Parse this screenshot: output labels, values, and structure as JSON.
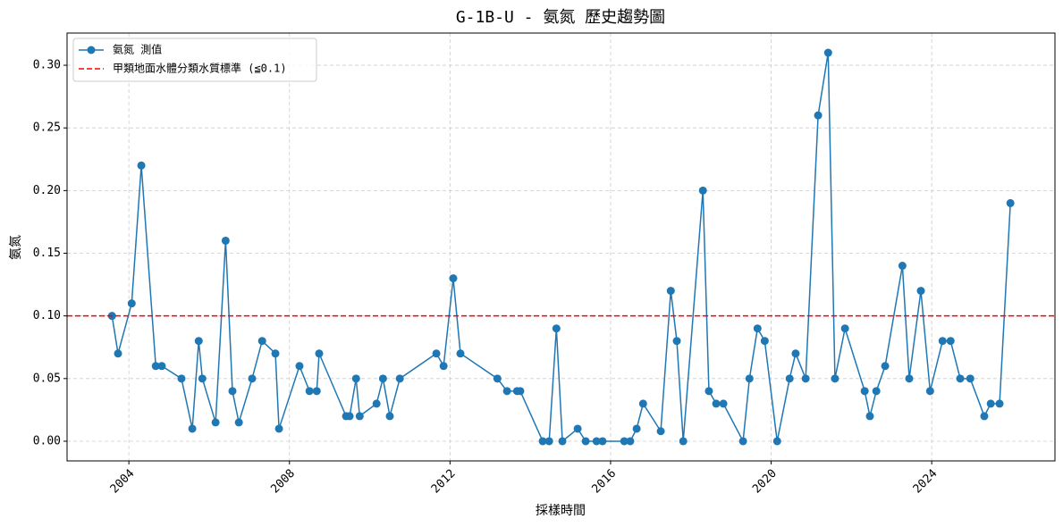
{
  "chart_data": {
    "type": "line",
    "title": "G-1B-U - 氨氮 歷史趨勢圖",
    "xlabel": "採樣時間",
    "ylabel": "氨氮",
    "x": [
      2003.58,
      2003.73,
      2004.07,
      2004.31,
      2004.67,
      2004.82,
      2005.31,
      2005.58,
      2005.74,
      2005.83,
      2006.16,
      2006.41,
      2006.58,
      2006.74,
      2007.07,
      2007.32,
      2007.65,
      2007.74,
      2008.25,
      2008.5,
      2008.68,
      2008.74,
      2009.41,
      2009.5,
      2009.66,
      2009.75,
      2010.17,
      2010.33,
      2010.5,
      2010.75,
      2011.66,
      2011.84,
      2012.08,
      2012.26,
      2013.18,
      2013.42,
      2013.67,
      2013.75,
      2014.31,
      2014.47,
      2014.65,
      2014.8,
      2015.18,
      2015.38,
      2015.65,
      2015.8,
      2016.34,
      2016.49,
      2016.65,
      2016.81,
      2017.25,
      2017.5,
      2017.65,
      2017.81,
      2018.3,
      2018.45,
      2018.63,
      2018.81,
      2019.3,
      2019.46,
      2019.66,
      2019.84,
      2020.15,
      2020.46,
      2020.61,
      2020.86,
      2021.17,
      2021.42,
      2021.59,
      2021.84,
      2022.33,
      2022.46,
      2022.62,
      2022.84,
      2023.27,
      2023.44,
      2023.73,
      2023.96,
      2024.27,
      2024.47,
      2024.71,
      2024.96,
      2025.31,
      2025.47,
      2025.69,
      2025.96
    ],
    "series": [
      {
        "name": "氨氮 測值",
        "color": "#1f77b4",
        "values": [
          0.1,
          0.07,
          0.11,
          0.22,
          0.06,
          0.06,
          0.05,
          0.01,
          0.08,
          0.05,
          0.015,
          0.16,
          0.04,
          0.015,
          0.05,
          0.08,
          0.07,
          0.01,
          0.06,
          0.04,
          0.04,
          0.07,
          0.02,
          0.02,
          0.05,
          0.02,
          0.03,
          0.05,
          0.02,
          0.05,
          0.07,
          0.06,
          0.13,
          0.07,
          0.05,
          0.04,
          0.04,
          0.04,
          0,
          0,
          0.09,
          0,
          0.01,
          0,
          0,
          0,
          0,
          0,
          0.01,
          0.03,
          0.008,
          0.12,
          0.08,
          0,
          0.2,
          0.04,
          0.03,
          0.03,
          0,
          0.05,
          0.09,
          0.08,
          0,
          0.05,
          0.07,
          0.05,
          0.26,
          0.31,
          0.05,
          0.09,
          0.04,
          0.02,
          0.04,
          0.06,
          0.14,
          0.05,
          0.12,
          0.04,
          0.08,
          0.08,
          0.05,
          0.05,
          0.02,
          0.03,
          0.03,
          0.19
        ]
      }
    ],
    "hline": {
      "name": "甲類地面水體分類水質標準 (≦0.1)",
      "value": 0.1,
      "color": "#ff0000"
    },
    "xlim": [
      2002.46,
      2027.07
    ],
    "xticks": [
      2004,
      2008,
      2012,
      2016,
      2020,
      2024
    ],
    "ylim": [
      -0.0157,
      0.3257
    ],
    "yticks": [
      {
        "value": 0,
        "label": "0.00"
      },
      {
        "value": 0.05,
        "label": "0.05"
      },
      {
        "value": 0.1,
        "label": "0.10"
      },
      {
        "value": 0.15,
        "label": "0.15"
      },
      {
        "value": 0.2,
        "label": "0.20"
      },
      {
        "value": 0.25,
        "label": "0.25"
      },
      {
        "value": 0.3,
        "label": "0.30"
      }
    ],
    "grid": true,
    "legend": "upper-left"
  }
}
